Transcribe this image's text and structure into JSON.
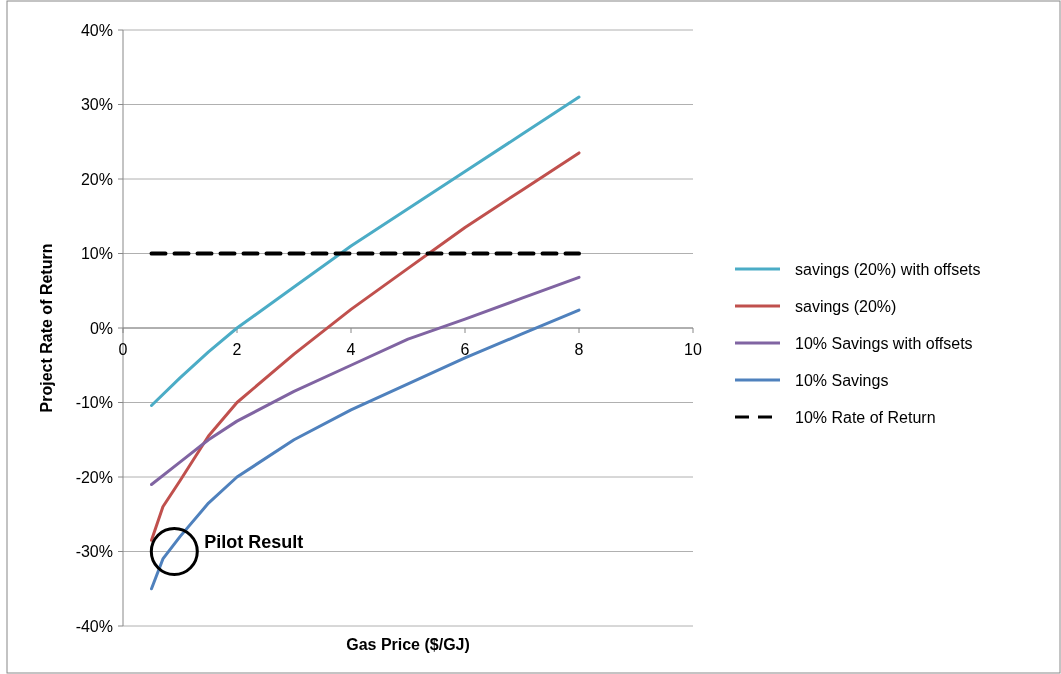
{
  "chart_data": {
    "type": "line",
    "xlabel": "Gas Price ($/GJ)",
    "ylabel": "Project Rate of Return",
    "xlim": [
      0,
      10
    ],
    "xticks": [
      0,
      2,
      4,
      6,
      8,
      10
    ],
    "ylim": [
      -40,
      40
    ],
    "yticks": [
      {
        "value": -40,
        "label": "-40%"
      },
      {
        "value": -30,
        "label": "-30%"
      },
      {
        "value": -20,
        "label": "-20%"
      },
      {
        "value": -10,
        "label": "-10%"
      },
      {
        "value": 0,
        "label": "0%"
      },
      {
        "value": 10,
        "label": "10%"
      },
      {
        "value": 20,
        "label": "20%"
      },
      {
        "value": 30,
        "label": "30%"
      },
      {
        "value": 40,
        "label": "40%"
      }
    ],
    "grid": "y",
    "legend": "right",
    "marker": "none",
    "series": [
      {
        "name": "savings (20%) with offsets",
        "color": "#4bacc6",
        "x": [
          0.5,
          1,
          1.5,
          2,
          3,
          4,
          5,
          6,
          7,
          8
        ],
        "values": [
          -10.4,
          -6.7,
          -3.2,
          0,
          5.5,
          11,
          16,
          21,
          26,
          31
        ]
      },
      {
        "name": "savings (20%)",
        "color": "#c0504d",
        "x": [
          0.5,
          0.7,
          1,
          1.5,
          2,
          3,
          4,
          5,
          6,
          7,
          8
        ],
        "values": [
          -28.5,
          -24,
          -20.5,
          -14.5,
          -10,
          -3.5,
          2.5,
          8,
          13.5,
          18.5,
          23.5
        ]
      },
      {
        "name": "10% Savings with offsets",
        "color": "#8064a2",
        "x": [
          0.5,
          1,
          1.5,
          2,
          3,
          4,
          5,
          6,
          7,
          8
        ],
        "values": [
          -21,
          -18,
          -15,
          -12.5,
          -8.5,
          -5,
          -1.5,
          1.2,
          4,
          6.8
        ]
      },
      {
        "name": "10% Savings",
        "color": "#4f81bd",
        "x": [
          0.5,
          0.7,
          1,
          1.5,
          2,
          3,
          4,
          5,
          6,
          7,
          8
        ],
        "values": [
          -35,
          -31,
          -28,
          -23.5,
          -20,
          -15,
          -11,
          -7.5,
          -4,
          -0.8,
          2.4
        ]
      },
      {
        "name": "10% Rate of Return",
        "color": "#000000",
        "line_style": "dashed",
        "x": [
          0.5,
          8
        ],
        "values": [
          10,
          10
        ]
      }
    ],
    "annotations": [
      {
        "text": "Pilot Result",
        "x": 0.9,
        "y": -30
      }
    ]
  }
}
